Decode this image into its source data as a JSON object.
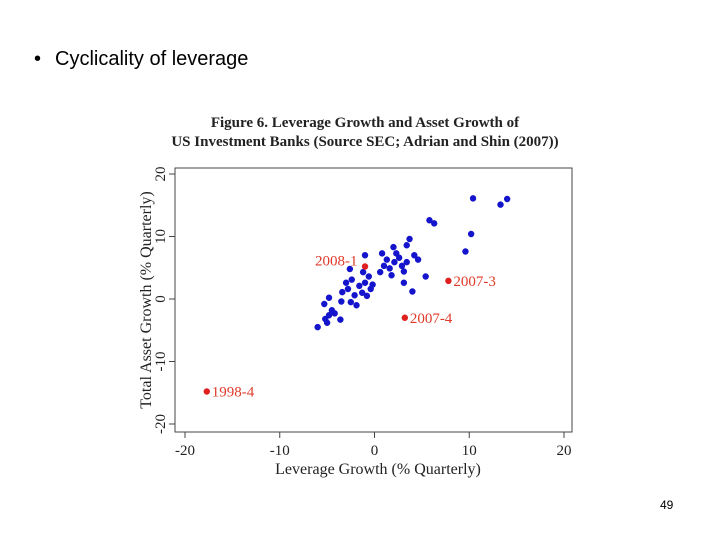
{
  "slide": {
    "bullet_symbol": "•",
    "bullet_text": "Cyclicality of leverage",
    "page_number": "49"
  },
  "figure": {
    "title_line1": "Figure 6.  Leverage Growth and Asset Growth of",
    "title_line2": "US Investment Banks (Source SEC;  Adrian and Shin (2007))"
  },
  "chart_data": {
    "type": "scatter",
    "title": "Figure 6.  Leverage Growth and Asset Growth of US Investment Banks (Source SEC;  Adrian and Shin (2007))",
    "xlabel": "Leverage Growth (% Quarterly)",
    "ylabel": "Total Asset Growth (% Quarterly)",
    "xlim": [
      -21,
      21
    ],
    "ylim": [
      -21,
      21
    ],
    "xticks": [
      -20,
      -10,
      0,
      10,
      20
    ],
    "yticks": [
      -20,
      -10,
      0,
      10,
      20
    ],
    "grid": false,
    "colors": {
      "main": "#1414cc",
      "highlight": "#e02020",
      "label": "#e03a2a"
    },
    "points": [
      [
        -6.0,
        -4.5
      ],
      [
        -5.2,
        -3.2
      ],
      [
        -5.0,
        -3.8
      ],
      [
        -4.8,
        -2.6
      ],
      [
        -4.5,
        -1.8
      ],
      [
        -4.2,
        -2.3
      ],
      [
        -3.6,
        -3.3
      ],
      [
        -5.3,
        -0.8
      ],
      [
        -4.8,
        0.2
      ],
      [
        -3.5,
        -0.4
      ],
      [
        -3.4,
        1.1
      ],
      [
        -3.0,
        2.6
      ],
      [
        -2.8,
        1.6
      ],
      [
        -2.4,
        3.1
      ],
      [
        -2.1,
        0.6
      ],
      [
        -1.9,
        -1.0
      ],
      [
        -1.6,
        2.1
      ],
      [
        -1.3,
        1.0
      ],
      [
        -1.0,
        2.6
      ],
      [
        -0.6,
        3.6
      ],
      [
        -0.4,
        1.6
      ],
      [
        -0.2,
        2.3
      ],
      [
        -2.6,
        4.8
      ],
      [
        -1.2,
        4.3
      ],
      [
        -1.0,
        7.0
      ],
      [
        0.6,
        4.3
      ],
      [
        1.0,
        5.3
      ],
      [
        1.3,
        6.3
      ],
      [
        1.6,
        4.9
      ],
      [
        1.8,
        3.8
      ],
      [
        2.1,
        5.9
      ],
      [
        2.3,
        7.3
      ],
      [
        2.6,
        6.6
      ],
      [
        2.9,
        5.3
      ],
      [
        3.1,
        4.4
      ],
      [
        3.4,
        5.9
      ],
      [
        2.0,
        8.3
      ],
      [
        3.4,
        8.6
      ],
      [
        3.7,
        9.6
      ],
      [
        4.2,
        7.0
      ],
      [
        4.6,
        6.3
      ],
      [
        3.1,
        2.6
      ],
      [
        4.0,
        1.2
      ],
      [
        5.4,
        3.6
      ],
      [
        5.8,
        12.6
      ],
      [
        6.3,
        12.1
      ],
      [
        9.6,
        7.6
      ],
      [
        10.2,
        10.4
      ],
      [
        10.4,
        16.1
      ],
      [
        13.3,
        15.1
      ],
      [
        14.0,
        16.0
      ],
      [
        -0.8,
        0.5
      ],
      [
        -2.5,
        -0.5
      ],
      [
        0.8,
        7.3
      ]
    ],
    "labeled_points": [
      {
        "label": "2008-1",
        "x": -1.0,
        "y": 5.2
      },
      {
        "label": "2007-3",
        "x": 7.8,
        "y": 2.9
      },
      {
        "label": "2007-4",
        "x": 3.2,
        "y": -3.0
      },
      {
        "label": "1998-4",
        "x": -17.7,
        "y": -14.8
      }
    ]
  }
}
